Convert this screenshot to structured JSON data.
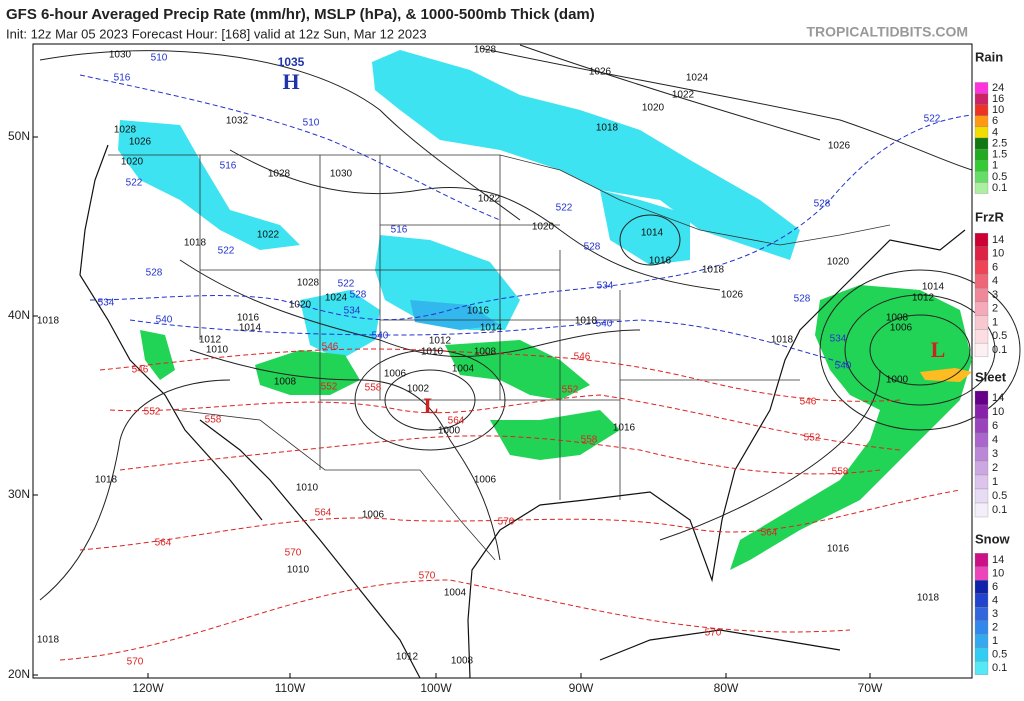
{
  "header": {
    "title": "GFS 6-hour Averaged Precip Rate (mm/hr), MSLP (hPa), & 1000-500mb Thick (dam)",
    "subtitle": "Init: 12z Mar 05 2023   Forecast Hour: [168]   valid at 12z Sun, Mar 12 2023",
    "credit": "TROPICALTIDBITS.COM"
  },
  "map": {
    "lat_labels": [
      "50N",
      "40N",
      "30N",
      "20N"
    ],
    "lon_labels": [
      "120W",
      "110W",
      "100W",
      "90W",
      "80W",
      "70W"
    ],
    "highs": [
      {
        "label": "H",
        "value": 1035
      }
    ],
    "lows": [
      "L",
      "L"
    ],
    "isobar_labels": [
      1030,
      1028,
      1026,
      1024,
      1022,
      1020,
      1018,
      1028,
      1026,
      1020,
      1032,
      1028,
      1030,
      1022,
      1020,
      1014,
      1016,
      1018,
      1020,
      1026,
      1018,
      1022,
      1028,
      1024,
      1020,
      1016,
      1014,
      1012,
      1010,
      1016,
      1014,
      1012,
      1010,
      1008,
      1004,
      1008,
      1006,
      1002,
      1000,
      1006,
      1016,
      1018,
      1026,
      1018,
      1014,
      1012,
      1008,
      1006,
      1000,
      1010,
      1006,
      1010,
      1004,
      1008,
      1012,
      1018,
      1018,
      1016,
      1018,
      1018
    ],
    "thickness_labels_cold": [
      516,
      510,
      510,
      516,
      522,
      522,
      528,
      534,
      540,
      522,
      528,
      534,
      540,
      516,
      522,
      528,
      534,
      540,
      528,
      522,
      534,
      540,
      528
    ],
    "thickness_labels_warm": [
      546,
      552,
      558,
      552,
      558,
      564,
      546,
      552,
      558,
      546,
      552,
      558,
      564,
      564,
      564,
      570,
      570,
      570,
      570,
      570,
      546
    ]
  },
  "legend": [
    {
      "title": "Rain",
      "ticks": [
        24,
        16,
        10,
        6,
        4,
        2.5,
        1.5,
        1,
        0.5,
        0.1
      ]
    },
    {
      "title": "FrzR",
      "ticks": [
        14,
        10,
        6,
        4,
        3,
        2,
        1,
        0.5,
        0.1
      ]
    },
    {
      "title": "Sleet",
      "ticks": [
        14,
        10,
        6,
        4,
        3,
        2,
        1,
        0.5,
        0.1
      ]
    },
    {
      "title": "Snow",
      "ticks": [
        14,
        10,
        6,
        4,
        3,
        2,
        1,
        0.5,
        0.1
      ]
    }
  ]
}
